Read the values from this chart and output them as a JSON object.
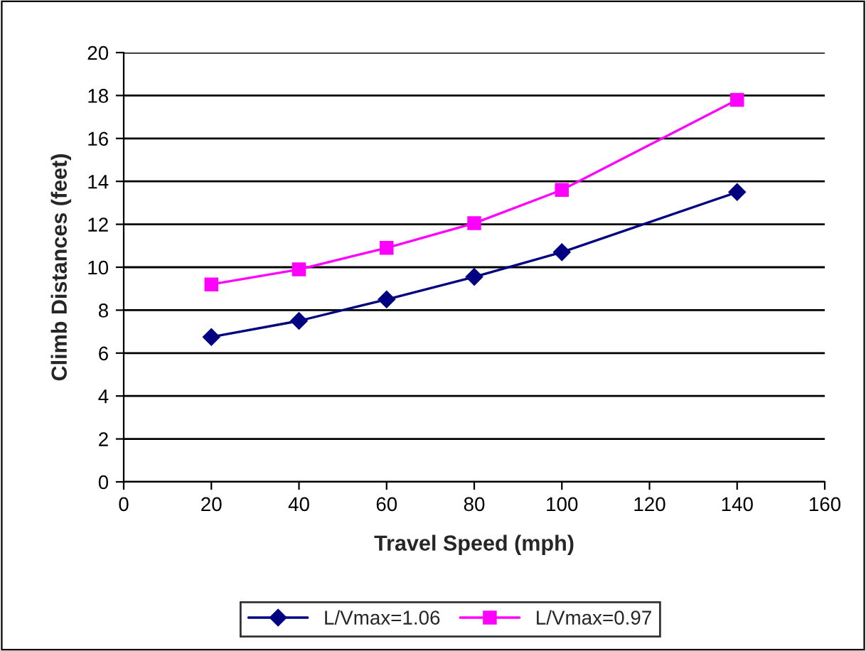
{
  "chart_data": {
    "type": "line",
    "xlabel": "Travel Speed (mph)",
    "ylabel": "Climb Distances (feet)",
    "xlim": [
      0,
      160
    ],
    "xticks": [
      0,
      20,
      40,
      60,
      80,
      100,
      120,
      140,
      160
    ],
    "ylim": [
      0,
      20
    ],
    "yticks": [
      0,
      2,
      4,
      6,
      8,
      10,
      12,
      14,
      16,
      18,
      20
    ],
    "grid": "y",
    "legend": "bottom",
    "x": [
      20,
      40,
      60,
      80,
      100,
      140
    ],
    "series": [
      {
        "name": "L/Vmax=1.06",
        "color": "#000080",
        "marker": "diamond",
        "values": [
          6.75,
          7.5,
          8.5,
          9.55,
          10.7,
          13.5
        ]
      },
      {
        "name": "L/Vmax=0.97",
        "color": "#ff00ff",
        "marker": "square",
        "values": [
          9.2,
          9.9,
          10.9,
          12.05,
          13.6,
          17.8
        ]
      }
    ]
  }
}
